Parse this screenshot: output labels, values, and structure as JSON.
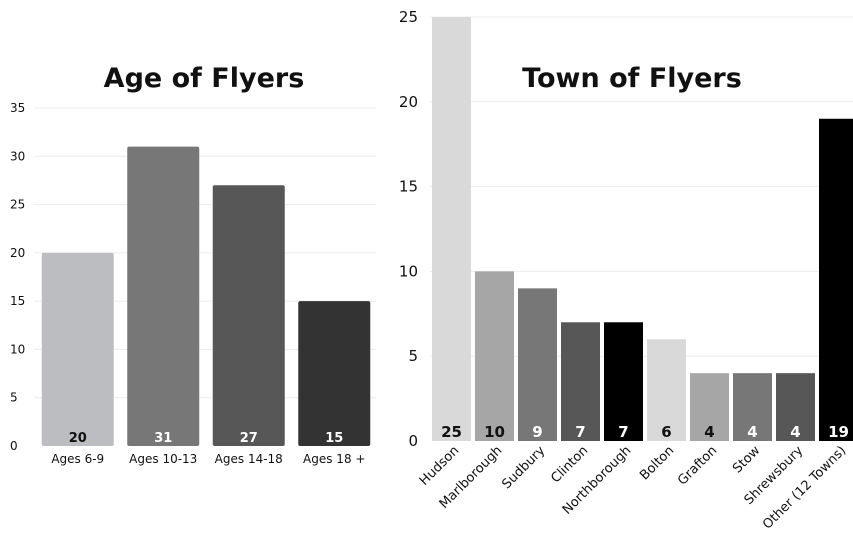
{
  "chart_data": [
    {
      "type": "bar",
      "title": "Age of Flyers",
      "categories": [
        "Ages 6-9",
        "Ages 10-13",
        "Ages 14-18",
        "Ages 18 +"
      ],
      "values": [
        20,
        31,
        27,
        15
      ],
      "data_labels": [
        "20",
        "31",
        "27",
        "15"
      ],
      "yticks": [
        "0",
        "5",
        "10",
        "15",
        "20",
        "25",
        "30",
        "35"
      ],
      "ylim": [
        0,
        35
      ],
      "grid": true,
      "colors": [
        "#bcbdc0",
        "#777777",
        "#575757",
        "#333333"
      ],
      "label_colors": [
        "#111111",
        "#ffffff",
        "#ffffff",
        "#ffffff"
      ]
    },
    {
      "type": "bar",
      "title": "Town of Flyers",
      "categories": [
        "Hudson",
        "Marlborough",
        "Sudbury",
        "Clinton",
        "Northborough",
        "Bolton",
        "Grafton",
        "Stow",
        "Shrewsbury",
        "Other (12 Towns)"
      ],
      "values": [
        25,
        10,
        9,
        7,
        7,
        6,
        4,
        4,
        4,
        19
      ],
      "data_labels": [
        "25",
        "10",
        "9",
        "7",
        "7",
        "6",
        "4",
        "4",
        "4",
        "19"
      ],
      "yticks": [
        "0",
        "5",
        "10",
        "15",
        "20",
        "25"
      ],
      "ylim": [
        0,
        25
      ],
      "grid": true,
      "colors": [
        "#d9d9d9",
        "#a6a6a6",
        "#777777",
        "#575757",
        "#000000",
        "#d9d9d9",
        "#a6a6a6",
        "#777777",
        "#575757",
        "#000000"
      ],
      "label_colors": [
        "#111111",
        "#111111",
        "#ffffff",
        "#ffffff",
        "#ffffff",
        "#111111",
        "#111111",
        "#ffffff",
        "#ffffff",
        "#ffffff"
      ]
    }
  ]
}
